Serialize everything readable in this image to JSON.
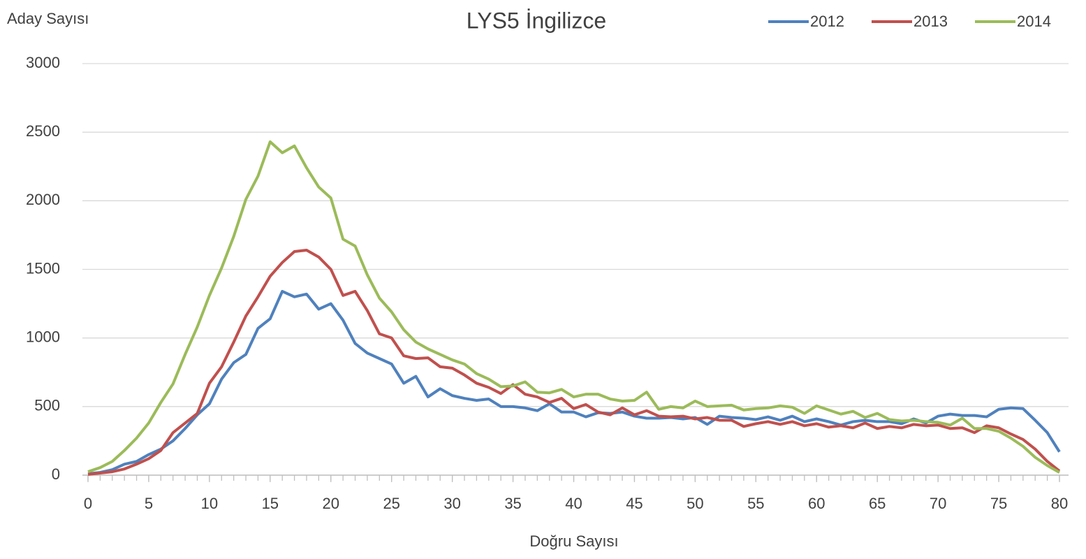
{
  "chart_data": {
    "type": "line",
    "title": "LYS5 İngilizce",
    "y_label": "Aday Sayısı",
    "x_label": "Doğru Sayısı",
    "x": [
      0,
      1,
      2,
      3,
      4,
      5,
      6,
      7,
      8,
      9,
      10,
      11,
      12,
      13,
      14,
      15,
      16,
      17,
      18,
      19,
      20,
      21,
      22,
      23,
      24,
      25,
      26,
      27,
      28,
      29,
      30,
      31,
      32,
      33,
      34,
      35,
      36,
      37,
      38,
      39,
      40,
      41,
      42,
      43,
      44,
      45,
      46,
      47,
      48,
      49,
      50,
      51,
      52,
      53,
      54,
      55,
      56,
      57,
      58,
      59,
      60,
      61,
      62,
      63,
      64,
      65,
      66,
      67,
      68,
      69,
      70,
      71,
      72,
      73,
      74,
      75,
      76,
      77,
      78,
      79,
      80
    ],
    "xlim": [
      0,
      80
    ],
    "xticks": [
      0,
      5,
      10,
      15,
      20,
      25,
      30,
      35,
      40,
      45,
      50,
      55,
      60,
      65,
      70,
      75,
      80
    ],
    "ylim": [
      0,
      3000
    ],
    "yticks": [
      0,
      500,
      1000,
      1500,
      2000,
      2500,
      3000
    ],
    "grid": true,
    "legend": "top-right",
    "series": [
      {
        "name": "2012",
        "color": "#4f81bd",
        "values": [
          10,
          20,
          40,
          80,
          100,
          150,
          190,
          250,
          340,
          440,
          520,
          700,
          820,
          880,
          1070,
          1140,
          1340,
          1300,
          1320,
          1210,
          1250,
          1130,
          960,
          890,
          850,
          810,
          670,
          720,
          570,
          630,
          580,
          560,
          545,
          555,
          500,
          500,
          490,
          470,
          520,
          460,
          460,
          425,
          455,
          450,
          460,
          430,
          415,
          415,
          420,
          410,
          420,
          370,
          430,
          420,
          415,
          405,
          425,
          400,
          430,
          390,
          410,
          390,
          365,
          390,
          400,
          390,
          390,
          375,
          410,
          380,
          430,
          445,
          435,
          435,
          425,
          480,
          490,
          485,
          400,
          310,
          170
        ]
      },
      {
        "name": "2013",
        "color": "#c0504d",
        "values": [
          5,
          15,
          25,
          45,
          80,
          120,
          180,
          310,
          380,
          450,
          670,
          790,
          970,
          1160,
          1300,
          1450,
          1550,
          1630,
          1640,
          1590,
          1500,
          1310,
          1340,
          1200,
          1030,
          1000,
          870,
          850,
          855,
          790,
          780,
          730,
          670,
          640,
          595,
          660,
          590,
          570,
          530,
          560,
          485,
          515,
          460,
          440,
          490,
          440,
          470,
          430,
          425,
          430,
          410,
          420,
          400,
          400,
          355,
          375,
          390,
          370,
          390,
          360,
          375,
          350,
          360,
          345,
          380,
          340,
          355,
          345,
          370,
          360,
          365,
          340,
          345,
          310,
          360,
          345,
          300,
          260,
          190,
          100,
          30
        ]
      },
      {
        "name": "2014",
        "color": "#9bbb59",
        "values": [
          25,
          55,
          100,
          180,
          270,
          380,
          530,
          665,
          880,
          1080,
          1310,
          1510,
          1740,
          2010,
          2180,
          2430,
          2350,
          2400,
          2240,
          2100,
          2020,
          1720,
          1670,
          1460,
          1290,
          1190,
          1060,
          970,
          920,
          880,
          840,
          810,
          740,
          700,
          645,
          650,
          680,
          605,
          600,
          625,
          570,
          590,
          590,
          555,
          540,
          545,
          605,
          480,
          500,
          490,
          540,
          500,
          505,
          510,
          475,
          485,
          490,
          505,
          495,
          450,
          505,
          475,
          445,
          465,
          420,
          450,
          405,
          395,
          400,
          390,
          385,
          365,
          415,
          340,
          340,
          320,
          270,
          210,
          130,
          70,
          20
        ]
      }
    ]
  }
}
